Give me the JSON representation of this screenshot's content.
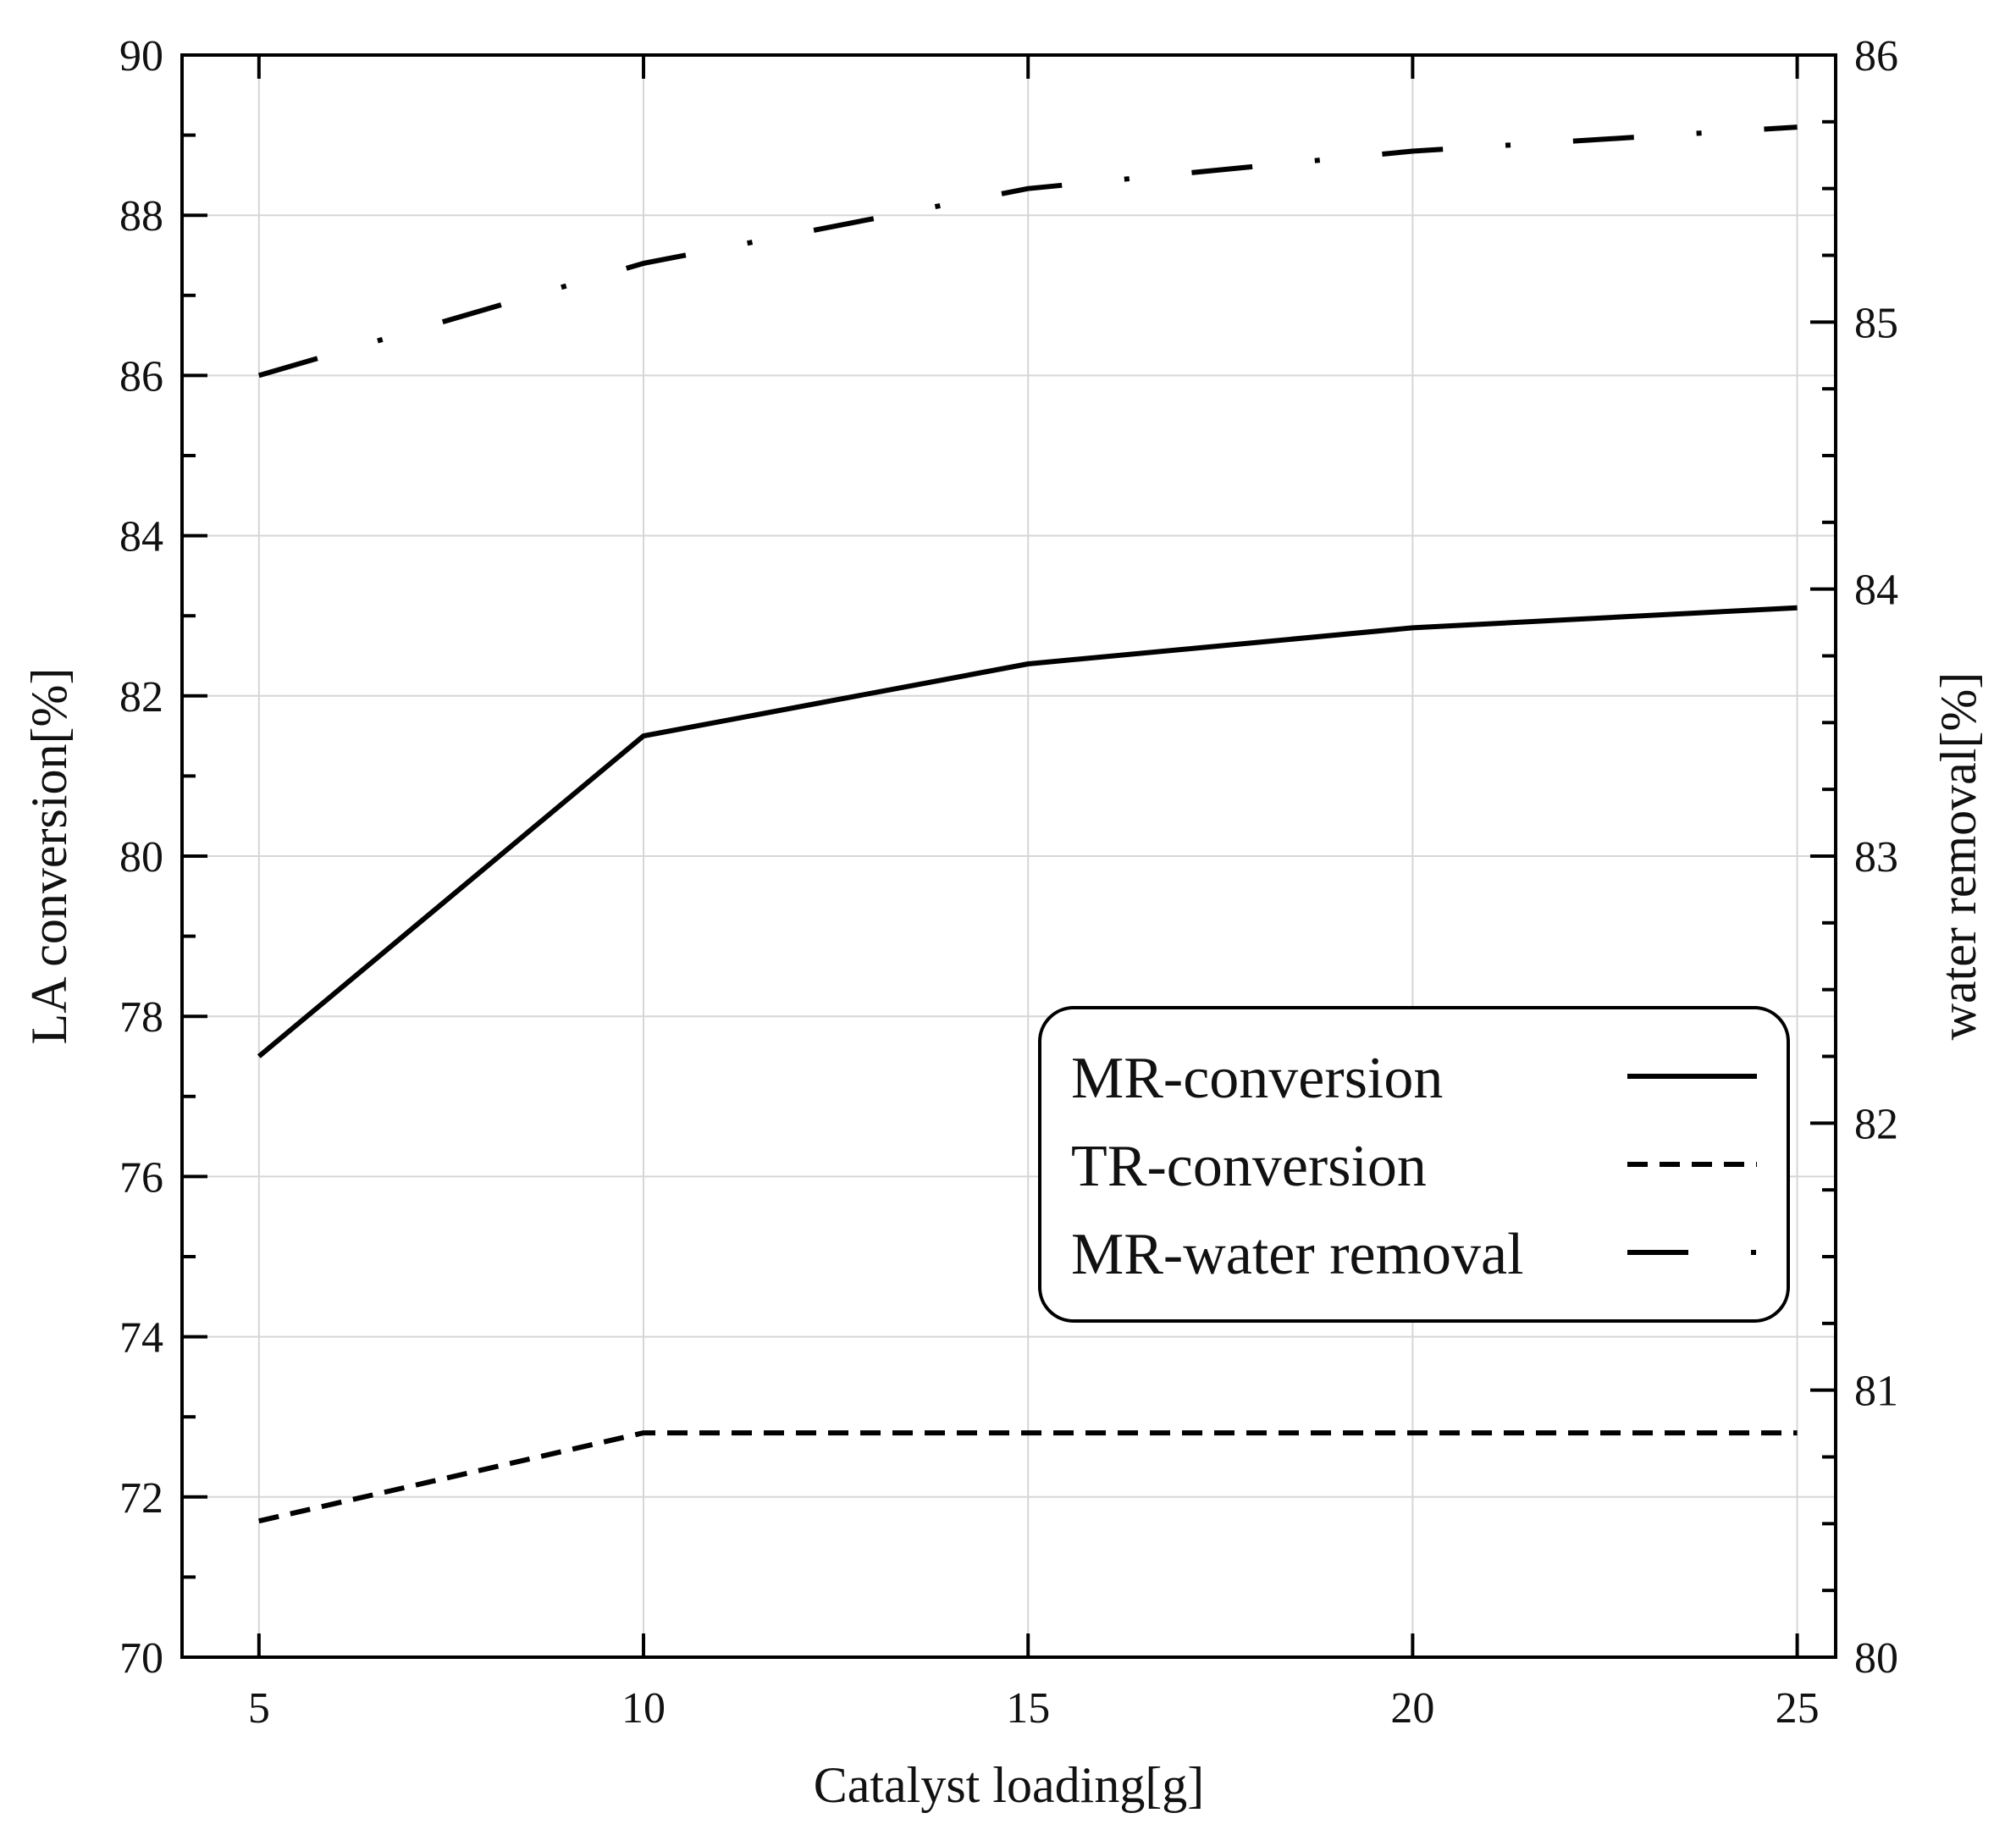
{
  "chart_data": {
    "type": "line",
    "title": "",
    "xlabel": "Catalyst loading[g]",
    "ylabel": "LA conversion[%]",
    "y2label": "water removal[%]",
    "xlim": [
      4,
      25.5
    ],
    "ylim": [
      70,
      90
    ],
    "y2lim": [
      80,
      86
    ],
    "x_ticks": [
      5,
      10,
      15,
      20,
      25
    ],
    "y_ticks": [
      70,
      72,
      74,
      76,
      78,
      80,
      82,
      84,
      86,
      88,
      90
    ],
    "y2_ticks": [
      80,
      81,
      82,
      83,
      84,
      85,
      86
    ],
    "x_tick_labels": [
      "5",
      "10",
      "15",
      "20",
      "25"
    ],
    "y_tick_labels": [
      "70",
      "72",
      "74",
      "76",
      "78",
      "80",
      "82",
      "84",
      "86",
      "88",
      "90"
    ],
    "y2_tick_labels": [
      "80",
      "81",
      "82",
      "83",
      "84",
      "85",
      "86"
    ],
    "grid": true,
    "legend_position": "center-right",
    "series": [
      {
        "name": "MR-conversion",
        "axis": "left",
        "style": "solid",
        "x": [
          5,
          10,
          15,
          20,
          25
        ],
        "values": [
          77.5,
          81.5,
          82.4,
          82.85,
          83.1
        ]
      },
      {
        "name": "TR-conversion",
        "axis": "left",
        "style": "dashed",
        "x": [
          5,
          10,
          15,
          20,
          25
        ],
        "values": [
          71.7,
          72.8,
          72.8,
          72.8,
          72.8
        ]
      },
      {
        "name": "MR-water removal",
        "axis": "right",
        "style": "dashdot",
        "x": [
          5,
          10,
          15,
          20,
          25
        ],
        "values": [
          84.8,
          85.22,
          85.5,
          85.64,
          85.73
        ]
      }
    ]
  }
}
